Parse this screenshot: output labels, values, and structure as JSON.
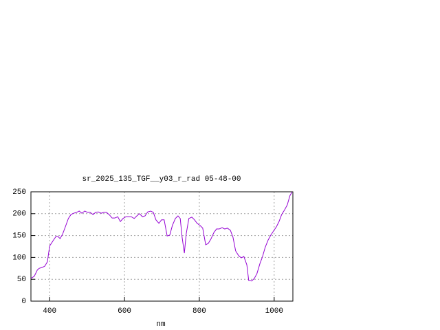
{
  "chart_data": {
    "type": "line",
    "title": "sr_2025_135_TGF__y03_r_rad 05-48-00",
    "x_label": "nm",
    "x": [
      350,
      359,
      367,
      372,
      380,
      387,
      394,
      400,
      409,
      417,
      422,
      428,
      435,
      442,
      450,
      457,
      464,
      472,
      479,
      486,
      494,
      501,
      508,
      516,
      523,
      530,
      538,
      545,
      552,
      560,
      567,
      574,
      582,
      589,
      596,
      604,
      611,
      618,
      626,
      633,
      640,
      648,
      655,
      662,
      670,
      677,
      684,
      692,
      699,
      706,
      714,
      721,
      728,
      736,
      743,
      749,
      754,
      760,
      765,
      772,
      780,
      787,
      794,
      802,
      809,
      817,
      824,
      831,
      839,
      846,
      853,
      861,
      868,
      875,
      883,
      890,
      897,
      905,
      912,
      919,
      927,
      932,
      940,
      947,
      954,
      962,
      969,
      976,
      984,
      991,
      998,
      1006,
      1013,
      1020,
      1028,
      1035,
      1042,
      1048
    ],
    "series": [
      {
        "color": "#9400d3",
        "values": [
          52,
          57,
          71,
          75,
          77,
          80,
          90,
          126,
          138,
          148,
          148,
          143,
          154,
          170,
          189,
          198,
          201,
          203,
          206,
          201,
          206,
          203,
          203,
          198,
          203,
          204,
          201,
          203,
          203,
          197,
          190,
          190,
          193,
          182,
          189,
          193,
          193,
          193,
          189,
          195,
          200,
          193,
          195,
          204,
          206,
          203,
          186,
          178,
          186,
          186,
          149,
          151,
          173,
          189,
          195,
          189,
          146,
          110,
          154,
          189,
          192,
          186,
          178,
          173,
          167,
          129,
          132,
          142,
          157,
          165,
          165,
          168,
          165,
          167,
          162,
          146,
          115,
          104,
          99,
          102,
          83,
          47,
          46,
          52,
          63,
          86,
          102,
          123,
          140,
          151,
          160,
          170,
          182,
          198,
          209,
          220,
          241,
          250
        ]
      }
    ],
    "xlim": [
      350,
      1050
    ],
    "ylim": [
      0,
      250
    ],
    "xticks": [
      400,
      600,
      800,
      1000
    ],
    "yticks": [
      0,
      50,
      100,
      150,
      200,
      250
    ],
    "grid": true
  }
}
